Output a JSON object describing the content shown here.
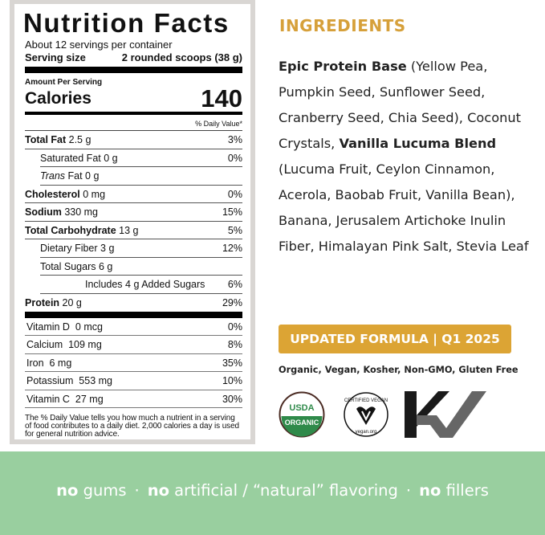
{
  "label": {
    "title": "Nutrition Facts",
    "servings": "About 12 servings per container",
    "serving_size_label": "Serving size",
    "serving_size_value": "2 rounded scoops (38 g)",
    "amount_per_serving": "Amount Per Serving",
    "calories_label": "Calories",
    "calories_value": "140",
    "dv_header": "% Daily Value*",
    "nutrients": [
      {
        "name": "Total Fat",
        "amount": "2.5 g",
        "dv": "3%"
      },
      {
        "name": "Saturated Fat",
        "amount": "0 g",
        "dv": "0%"
      },
      {
        "name": "Trans",
        "suffix": "Fat",
        "amount": "0 g",
        "dv": ""
      },
      {
        "name": "Cholesterol",
        "amount": "0 mg",
        "dv": "0%"
      },
      {
        "name": "Sodium",
        "amount": "330 mg",
        "dv": "15%"
      },
      {
        "name": "Total Carbohydrate",
        "amount": "13 g",
        "dv": "5%"
      },
      {
        "name": "Dietary Fiber",
        "amount": "3 g",
        "dv": "12%"
      },
      {
        "name": "Total Sugars",
        "amount": "6 g",
        "dv": ""
      },
      {
        "name": "Includes 4 g Added Sugars",
        "amount": "",
        "dv": "6%"
      },
      {
        "name": "Protein",
        "amount": "20 g",
        "dv": "29%"
      }
    ],
    "vitamins": [
      {
        "name": "Vitamin D",
        "amount": "0 mcg",
        "dv": "0%"
      },
      {
        "name": "Calcium",
        "amount": "109 mg",
        "dv": "8%"
      },
      {
        "name": "Iron",
        "amount": "6 mg",
        "dv": "35%"
      },
      {
        "name": "Potassium",
        "amount": "553 mg",
        "dv": "10%"
      },
      {
        "name": "Vitamin C",
        "amount": "27 mg",
        "dv": "30%"
      }
    ],
    "footnote": "The % Daily Value tells you how much a nutrient in a serving of food contributes to a daily diet. 2,000 calories a day is used for general nutrition advice."
  },
  "ingredients": {
    "heading": "INGREDIENTS",
    "segments": [
      {
        "text": "Epic Protein Base",
        "bold": true
      },
      {
        "text": " (Yellow Pea, Pumpkin Seed, Sunflower Seed, Cranberry Seed, Chia Seed), Coconut Crystals, ",
        "bold": false
      },
      {
        "text": "Vanilla Lucuma Blend",
        "bold": true
      },
      {
        "text": " (Lucuma Fruit, Ceylon Cinnamon, Acerola, Baobab Fruit, Vanilla Bean), Banana, Jerusalem Artichoke Inulin Fiber, Himalayan Pink Salt, Stevia Leaf",
        "bold": false
      }
    ]
  },
  "badge": "UPDATED FORMULA | Q1 2025",
  "certifications": "Organic, Vegan, Kosher, Non-GMO, Gluten Free",
  "logos": {
    "usda_top": "USDA",
    "usda_bottom": "ORGANIC",
    "vegan_top": "CERTIFIED VEGAN",
    "vegan_bottom": "vegan.org"
  },
  "band": {
    "items": [
      {
        "bold": "no",
        "rest": " gums"
      },
      {
        "bold": "no",
        "rest": " artificial / “natural” flavoring"
      },
      {
        "bold": "no",
        "rest": " fillers"
      }
    ],
    "separator": "·"
  },
  "colors": {
    "gold": "#dca434",
    "band_green": "#99cf9f",
    "usda_green": "#2f8a4a"
  }
}
